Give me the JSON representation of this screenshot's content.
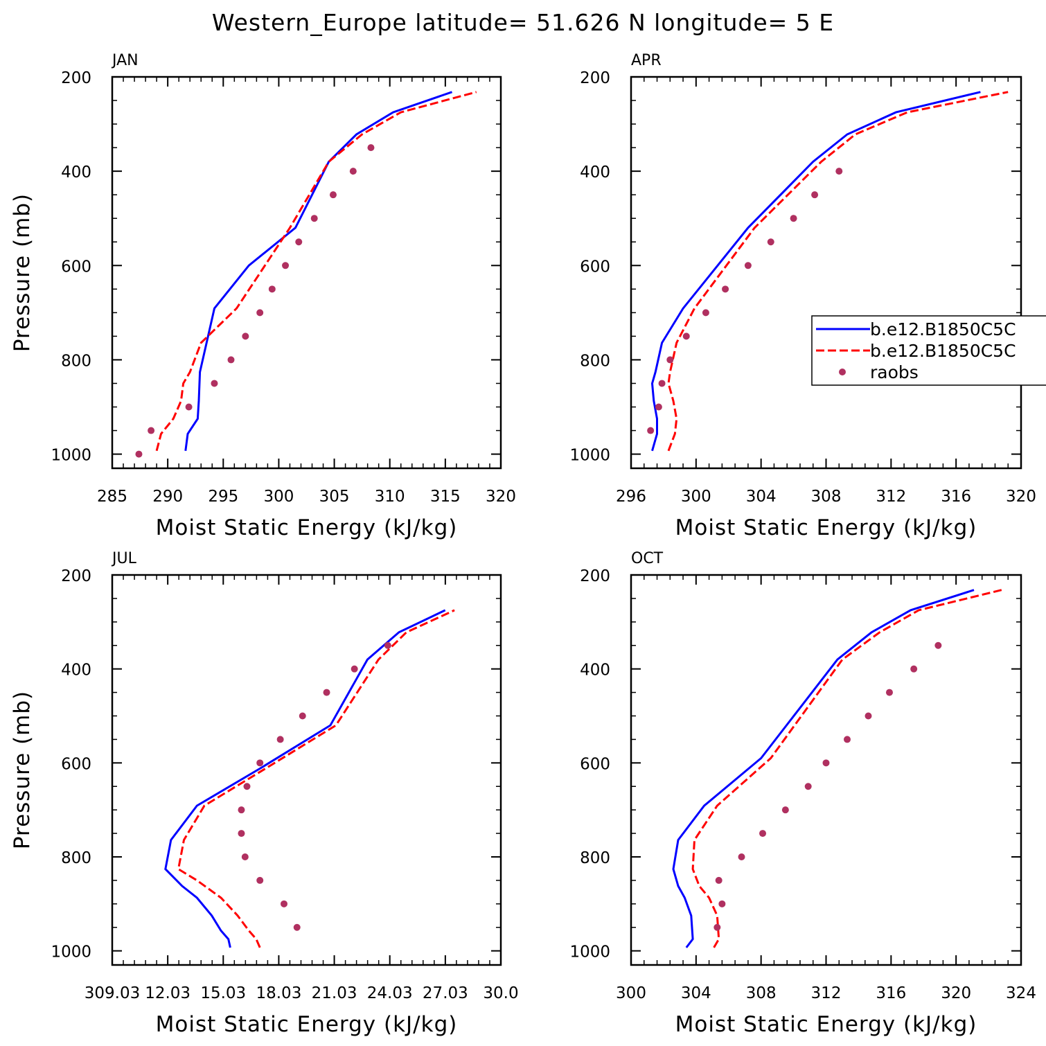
{
  "chart_data": {
    "title": "Western_Europe  latitude= 51.626 N longitude= 5 E",
    "legend": {
      "placement": "right of APR panel",
      "entries": [
        {
          "label": "b.e12.B1850C5C",
          "style": "solid",
          "color": "#0000ff"
        },
        {
          "label": "b.e12.B1850C5C",
          "style": "dashed",
          "color": "#ff0000"
        },
        {
          "label": "raobs",
          "style": "dots",
          "color": "#b03060"
        }
      ]
    },
    "colors": {
      "model1": "#0000ff",
      "model2": "#ff0000",
      "raobs": "#b03060",
      "axes": "#000000"
    },
    "panels": [
      {
        "type": "line",
        "label": "JAN",
        "xlabel": "Moist Static Energy (kJ/kg)",
        "ylabel": "Pressure (mb)",
        "xlim": [
          285,
          320
        ],
        "ylim": [
          1000,
          200
        ],
        "xticks": [
          "285",
          "290",
          "295",
          "300",
          "305",
          "310",
          "315",
          "320"
        ],
        "yticks": [
          "200",
          "400",
          "600",
          "800",
          "1000"
        ],
        "series": [
          {
            "name": "b.e12.B1850C5C",
            "style": "solid",
            "x": [
              291.6,
              291.8,
              292.7,
              292.8,
              292.9,
              293.5,
              294.2,
              297.3,
              301.5,
              304.5,
              307.0,
              310.3,
              315.6
            ],
            "y": [
              993,
              957,
              925,
              887,
              826,
              764,
              691,
              600,
              520,
              380,
              322,
              275,
              232
            ]
          },
          {
            "name": "b.e12.B1850C5C",
            "style": "dashed",
            "x": [
              289.0,
              289.4,
              290.5,
              291.2,
              291.4,
              292.0,
              293.0,
              296.2,
              301.0,
              304.5,
              307.5,
              311.0,
              317.8
            ],
            "y": [
              993,
              957,
              925,
              887,
              850,
              826,
              764,
              691,
              520,
              380,
              322,
              275,
              232
            ]
          },
          {
            "name": "raobs",
            "style": "dots",
            "x": [
              287.4,
              288.5,
              291.9,
              294.2,
              295.7,
              297.0,
              298.3,
              299.4,
              300.6,
              301.8,
              303.2,
              304.9,
              306.7,
              308.3
            ],
            "y": [
              1000,
              950,
              900,
              850,
              800,
              750,
              700,
              650,
              600,
              550,
              500,
              450,
              400,
              350
            ]
          }
        ]
      },
      {
        "type": "line",
        "label": "APR",
        "xlabel": "Moist Static Energy (kJ/kg)",
        "ylabel": "",
        "xlim": [
          296,
          320
        ],
        "ylim": [
          1000,
          200
        ],
        "xticks": [
          "296",
          "300",
          "304",
          "308",
          "312",
          "316",
          "320"
        ],
        "yticks": [
          "200",
          "400",
          "600",
          "800",
          "1000"
        ],
        "series": [
          {
            "name": "b.e12.B1850C5C",
            "style": "solid",
            "x": [
              297.3,
              297.6,
              297.6,
              297.4,
              297.3,
              297.5,
              297.9,
              299.2,
              303.2,
              307.2,
              309.3,
              312.3,
              317.5
            ],
            "y": [
              993,
              957,
              925,
              887,
              850,
              826,
              764,
              691,
              520,
              380,
              322,
              275,
              232
            ]
          },
          {
            "name": "b.e12.B1850C5C",
            "style": "dashed",
            "x": [
              298.3,
              298.7,
              298.8,
              298.6,
              298.3,
              298.4,
              298.8,
              299.9,
              303.6,
              307.7,
              309.8,
              313.0,
              319.2
            ],
            "y": [
              993,
              957,
              925,
              887,
              850,
              826,
              764,
              691,
              520,
              380,
              322,
              275,
              232
            ]
          },
          {
            "name": "raobs",
            "style": "dots",
            "x": [
              297.2,
              297.7,
              297.9,
              298.4,
              299.4,
              300.6,
              301.8,
              303.2,
              304.6,
              306.0,
              307.3,
              308.8
            ],
            "y": [
              950,
              900,
              850,
              800,
              750,
              700,
              650,
              600,
              550,
              500,
              450,
              400
            ]
          }
        ]
      },
      {
        "type": "line",
        "label": "JUL",
        "xlabel": "Moist Static Energy (kJ/kg)",
        "ylabel": "Pressure (mb)",
        "xlim": [
          309.03,
          330.0
        ],
        "ylim": [
          1000,
          200
        ],
        "xticks": [
          "309.03",
          "12.03",
          "15.03",
          "18.03",
          "21.03",
          "24.03",
          "27.03",
          "30.0"
        ],
        "yticks": [
          "200",
          "400",
          "600",
          "800",
          "1000"
        ],
        "series": [
          {
            "name": "b.e12.B1850C5C",
            "style": "solid",
            "x": [
              315.4,
              315.3,
              314.9,
              314.4,
              313.6,
              312.8,
              311.9,
              312.2,
              313.6,
              317.0,
              320.8,
              322.8,
              324.5,
              327.0
            ],
            "y": [
              993,
              975,
              957,
              925,
              887,
              862,
              826,
              764,
              691,
              612,
              520,
              380,
              322,
              275
            ]
          },
          {
            "name": "b.e12.B1850C5C",
            "style": "dashed",
            "x": [
              317.0,
              316.8,
              316.4,
              315.8,
              314.9,
              313.6,
              312.6,
              312.9,
              314.0,
              317.3,
              321.1,
              323.4,
              324.9,
              327.5
            ],
            "y": [
              993,
              975,
              957,
              925,
              887,
              850,
              826,
              764,
              691,
              612,
              520,
              380,
              322,
              275
            ]
          },
          {
            "name": "raobs",
            "style": "dots",
            "x": [
              319.0,
              318.3,
              317.0,
              316.2,
              316.0,
              316.0,
              316.3,
              317.0,
              318.1,
              319.3,
              320.6,
              322.1,
              323.9
            ],
            "y": [
              950,
              900,
              850,
              800,
              750,
              700,
              650,
              600,
              550,
              500,
              450,
              400,
              350
            ]
          }
        ]
      },
      {
        "type": "line",
        "label": "OCT",
        "xlabel": "Moist Static Energy (kJ/kg)",
        "ylabel": "",
        "xlim": [
          300,
          324
        ],
        "ylim": [
          1000,
          200
        ],
        "xticks": [
          "300",
          "304",
          "308",
          "312",
          "316",
          "320",
          "324"
        ],
        "yticks": [
          "200",
          "400",
          "600",
          "800",
          "1000"
        ],
        "series": [
          {
            "name": "b.e12.B1850C5C",
            "style": "solid",
            "x": [
              303.4,
              303.8,
              303.7,
              303.3,
              302.9,
              302.6,
              302.9,
              304.5,
              308.0,
              312.7,
              314.8,
              317.2,
              321.1
            ],
            "y": [
              993,
              975,
              925,
              887,
              862,
              826,
              764,
              691,
              590,
              380,
              322,
              275,
              232
            ]
          },
          {
            "name": "b.e12.B1850C5C",
            "style": "dashed",
            "x": [
              305.1,
              305.4,
              305.3,
              304.8,
              304.2,
              303.8,
              303.9,
              305.3,
              308.6,
              313.0,
              315.3,
              317.7,
              322.8
            ],
            "y": [
              993,
              975,
              925,
              887,
              862,
              826,
              764,
              691,
              590,
              380,
              322,
              275,
              232
            ]
          },
          {
            "name": "raobs",
            "style": "dots",
            "x": [
              305.3,
              305.6,
              305.4,
              306.8,
              308.1,
              309.5,
              310.9,
              312.0,
              313.3,
              314.6,
              315.9,
              317.4,
              318.9
            ],
            "y": [
              950,
              900,
              850,
              800,
              750,
              700,
              650,
              600,
              550,
              500,
              450,
              400,
              350
            ]
          }
        ]
      }
    ]
  }
}
